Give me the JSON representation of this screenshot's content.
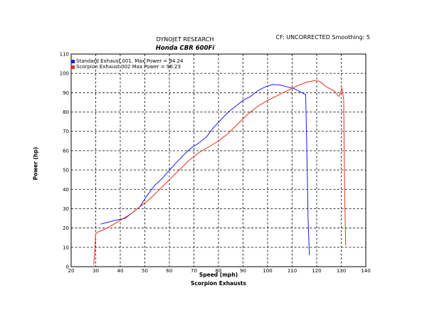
{
  "header": {
    "title": "DYNOJET RESEARCH",
    "subtitle": "Honda CBR 600Fi",
    "cf_note": "CF: UNCORRECTED  Smoothing: 5",
    "footer": "Scorpion Exhausts"
  },
  "legend": {
    "items": [
      {
        "label": "Standard Exhaust.001. Max Power = 94.24",
        "color": "#1a1aff"
      },
      {
        "label": "Scorpion Exhaust.002 Max Power = 96.23",
        "color": "#e0301e"
      }
    ]
  },
  "chart_data": {
    "type": "line",
    "title": "DYNOJET RESEARCH",
    "subtitle": "Honda CBR 600Fi",
    "xlabel": "Speed (mph)",
    "ylabel": "Power (hp)",
    "xlim": [
      20,
      140
    ],
    "ylim": [
      0,
      110
    ],
    "xticks": [
      20,
      30,
      40,
      50,
      60,
      70,
      80,
      90,
      100,
      110,
      120,
      130,
      140
    ],
    "yticks": [
      0,
      10,
      20,
      30,
      40,
      50,
      60,
      70,
      80,
      90,
      100,
      110
    ],
    "grid": true,
    "legend_position": "top-left",
    "series": [
      {
        "name": "Standard Exhaust.001. Max Power = 94.24",
        "color": "#1a1aff",
        "x": [
          32,
          35,
          38,
          42,
          45,
          48,
          51,
          54,
          57,
          60,
          63,
          66,
          69,
          72,
          75,
          78,
          81,
          84,
          87,
          90,
          93,
          96,
          99,
          102,
          105,
          108,
          111,
          114,
          115.5,
          116,
          116.5,
          117
        ],
        "y": [
          22,
          23,
          24,
          25,
          28,
          31,
          37,
          42,
          45.5,
          50,
          54,
          58,
          61.5,
          64,
          67,
          72,
          76,
          80,
          83,
          86,
          88,
          91,
          93,
          94.2,
          94,
          93,
          92,
          90,
          89,
          60,
          25,
          6
        ]
      },
      {
        "name": "Scorpion Exhaust.002 Max Power = 96.23",
        "color": "#e0301e",
        "x": [
          29.2,
          29.6,
          30,
          31,
          33,
          36,
          40,
          44,
          48,
          52,
          56,
          60,
          64,
          68,
          72,
          76,
          80,
          84,
          88,
          92,
          96,
          100,
          104,
          108,
          112,
          116,
          119,
          121,
          124,
          127,
          129,
          130,
          130.3,
          130.7,
          131,
          131.2,
          131.5,
          131.8
        ],
        "y": [
          1,
          8,
          17,
          18,
          19,
          21,
          24,
          27,
          31,
          35,
          40,
          45,
          50,
          55,
          59,
          62,
          65,
          69,
          74,
          79,
          83,
          86,
          88.5,
          91,
          93.5,
          95.5,
          96.2,
          96,
          93,
          91,
          88,
          91,
          92.5,
          89,
          86,
          60,
          30,
          11
        ]
      }
    ]
  }
}
